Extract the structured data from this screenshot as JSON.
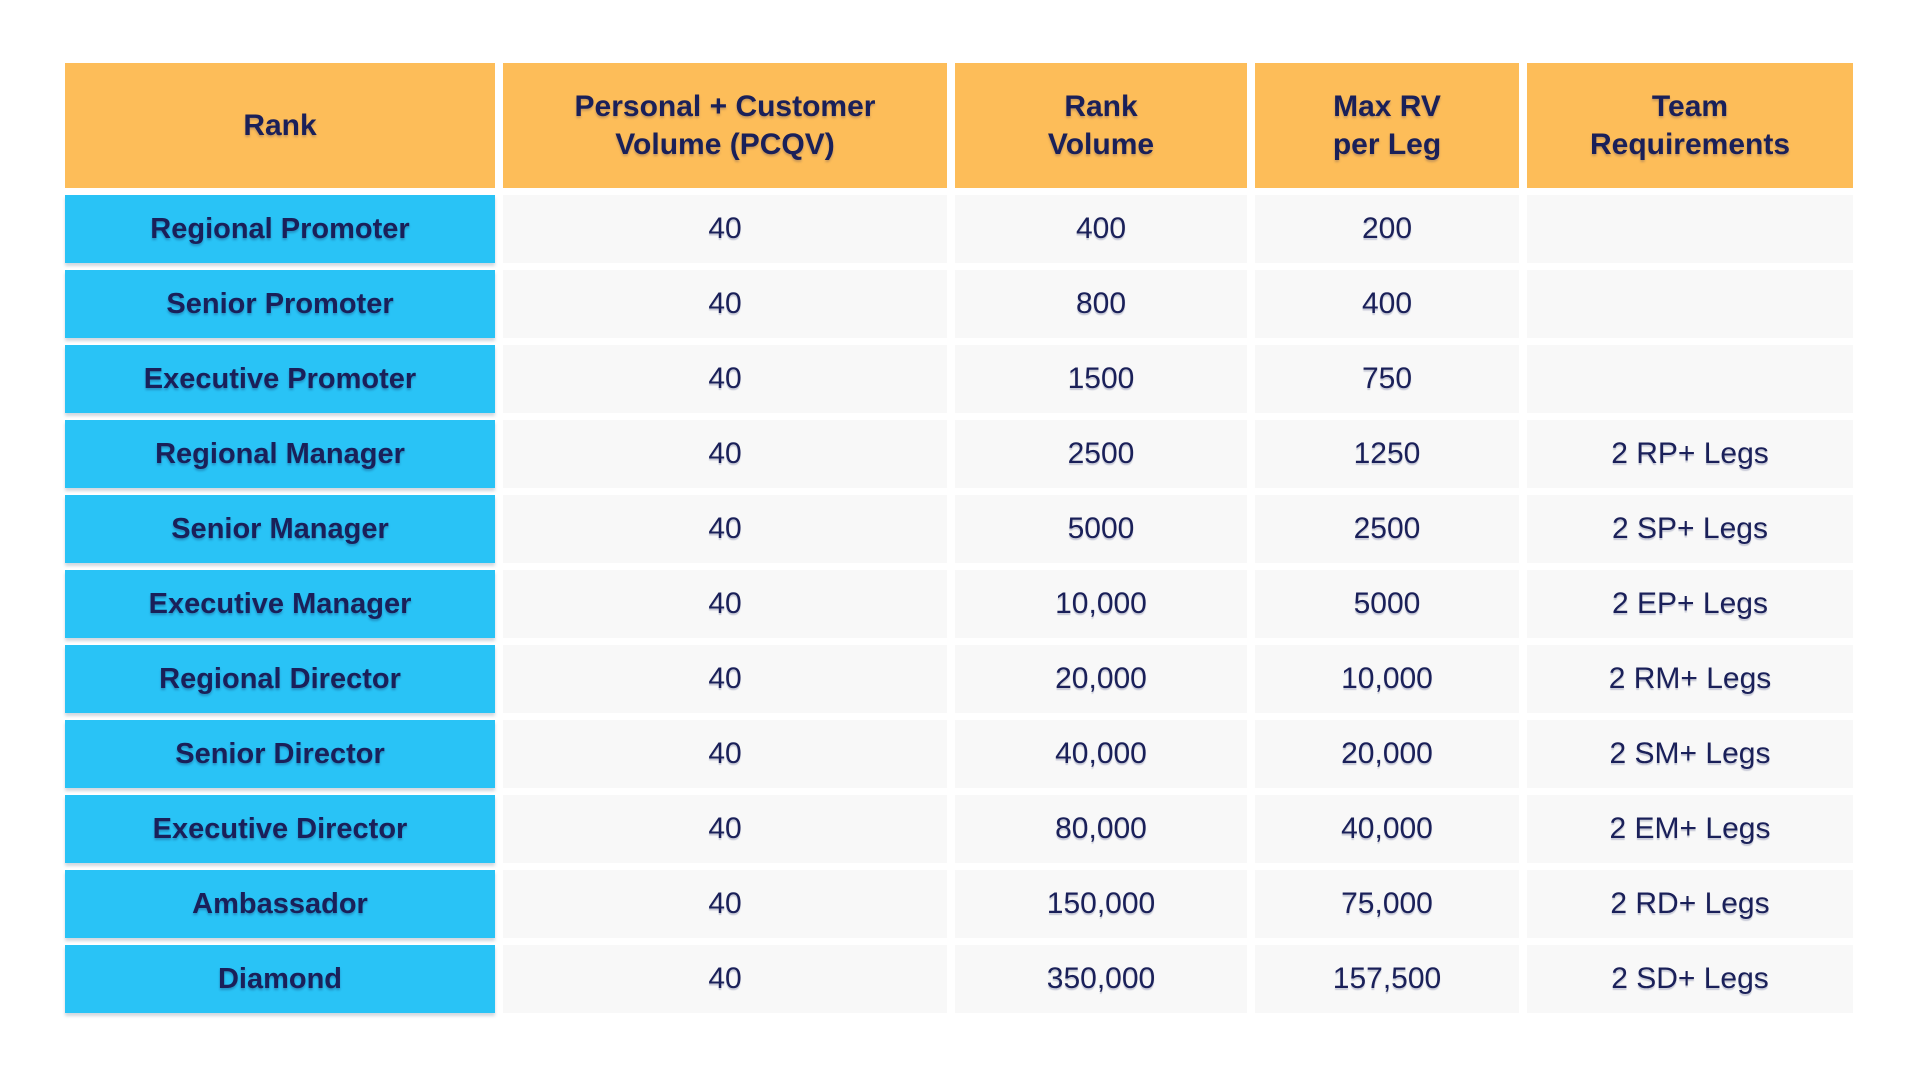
{
  "theme": {
    "header_bg": "#FDBD59",
    "rank_bg": "#29C3F6",
    "cell_bg": "#F8F8F8",
    "text_color": "#1A2059",
    "page_bg": "#FFFFFF"
  },
  "table": {
    "columns": [
      {
        "id": "rank",
        "label": "Rank"
      },
      {
        "id": "pcqv",
        "label": "Personal + Customer\nVolume (PCQV)"
      },
      {
        "id": "rank_volume",
        "label": "Rank\nVolume"
      },
      {
        "id": "max_rv",
        "label": "Max RV\nper Leg"
      },
      {
        "id": "team",
        "label": "Team\nRequirements"
      }
    ],
    "rows": [
      {
        "rank": "Regional Promoter",
        "pcqv": "40",
        "rank_volume": "400",
        "max_rv": "200",
        "team": ""
      },
      {
        "rank": "Senior Promoter",
        "pcqv": "40",
        "rank_volume": "800",
        "max_rv": "400",
        "team": ""
      },
      {
        "rank": "Executive Promoter",
        "pcqv": "40",
        "rank_volume": "1500",
        "max_rv": "750",
        "team": ""
      },
      {
        "rank": "Regional Manager",
        "pcqv": "40",
        "rank_volume": "2500",
        "max_rv": "1250",
        "team": "2 RP+ Legs"
      },
      {
        "rank": "Senior Manager",
        "pcqv": "40",
        "rank_volume": "5000",
        "max_rv": "2500",
        "team": "2 SP+ Legs"
      },
      {
        "rank": "Executive Manager",
        "pcqv": "40",
        "rank_volume": "10,000",
        "max_rv": "5000",
        "team": "2 EP+ Legs"
      },
      {
        "rank": "Regional Director",
        "pcqv": "40",
        "rank_volume": "20,000",
        "max_rv": "10,000",
        "team": "2 RM+ Legs"
      },
      {
        "rank": "Senior Director",
        "pcqv": "40",
        "rank_volume": "40,000",
        "max_rv": "20,000",
        "team": "2 SM+ Legs"
      },
      {
        "rank": "Executive Director",
        "pcqv": "40",
        "rank_volume": "80,000",
        "max_rv": "40,000",
        "team": "2 EM+ Legs"
      },
      {
        "rank": "Ambassador",
        "pcqv": "40",
        "rank_volume": "150,000",
        "max_rv": "75,000",
        "team": "2 RD+ Legs"
      },
      {
        "rank": "Diamond",
        "pcqv": "40",
        "rank_volume": "350,000",
        "max_rv": "157,500",
        "team": "2 SD+ Legs"
      }
    ]
  }
}
